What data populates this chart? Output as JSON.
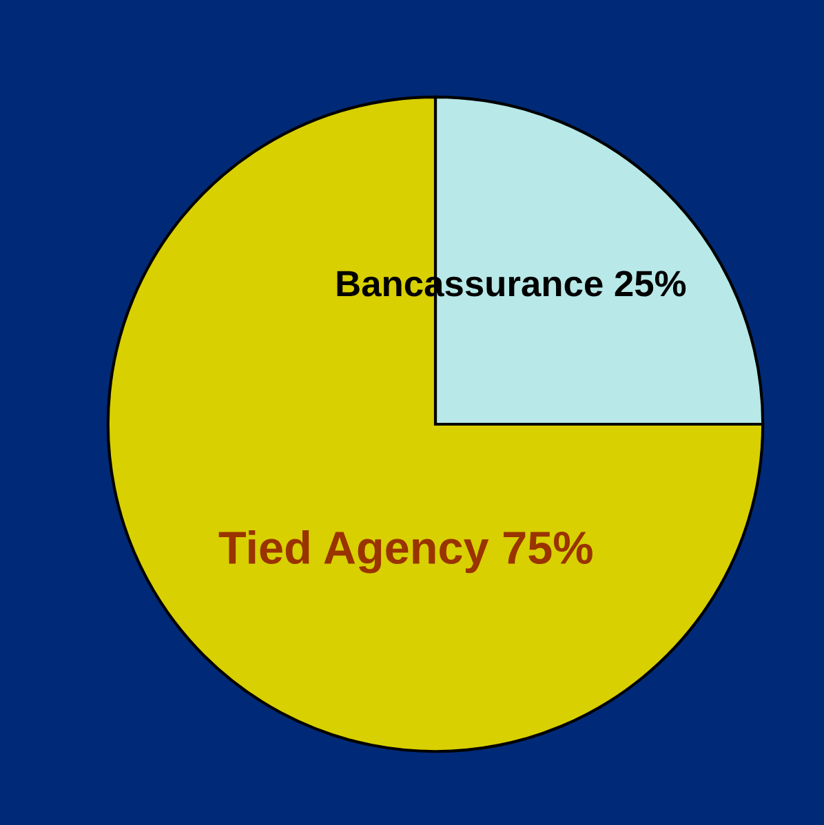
{
  "chart_data": {
    "type": "pie",
    "categories": [
      "Bancassurance",
      "Tied Agency"
    ],
    "values": [
      25,
      75
    ],
    "value_labels": [
      "25%",
      "75%"
    ],
    "colors": [
      "#b8e8e8",
      "#d8d000"
    ],
    "legend": false
  }
}
